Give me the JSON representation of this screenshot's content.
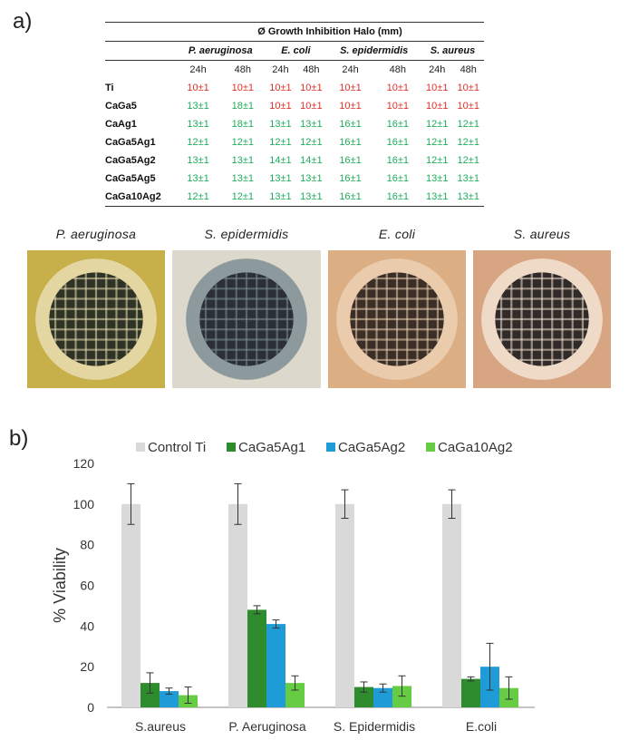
{
  "panel_a_label": "a)",
  "panel_b_label": "b)",
  "table": {
    "title": "Ø Growth Inhibition Halo (mm)",
    "organisms": [
      "P. aeruginosa",
      "E. coli",
      "S. epidermidis",
      "S. aureus"
    ],
    "times": [
      "24h",
      "48h",
      "24h",
      "48h",
      "24h",
      "48h",
      "24h",
      "48h"
    ],
    "rows": [
      {
        "sample": "Ti",
        "values": [
          "10±1",
          "10±1",
          "10±1",
          "10±1",
          "10±1",
          "10±1",
          "10±1",
          "10±1"
        ],
        "colors": [
          "red",
          "red",
          "red",
          "red",
          "red",
          "red",
          "red",
          "red"
        ]
      },
      {
        "sample": "CaGa5",
        "values": [
          "13±1",
          "18±1",
          "10±1",
          "10±1",
          "10±1",
          "10±1",
          "10±1",
          "10±1"
        ],
        "colors": [
          "green",
          "green",
          "red",
          "red",
          "red",
          "red",
          "red",
          "red"
        ]
      },
      {
        "sample": "CaAg1",
        "values": [
          "13±1",
          "18±1",
          "13±1",
          "13±1",
          "16±1",
          "16±1",
          "12±1",
          "12±1"
        ],
        "colors": [
          "green",
          "green",
          "green",
          "green",
          "green",
          "green",
          "green",
          "green"
        ]
      },
      {
        "sample": "CaGa5Ag1",
        "values": [
          "12±1",
          "12±1",
          "12±1",
          "12±1",
          "16±1",
          "16±1",
          "12±1",
          "12±1"
        ],
        "colors": [
          "green",
          "green",
          "green",
          "green",
          "green",
          "green",
          "green",
          "green"
        ]
      },
      {
        "sample": "CaGa5Ag2",
        "values": [
          "13±1",
          "13±1",
          "14±1",
          "14±1",
          "16±1",
          "16±1",
          "12±1",
          "12±1"
        ],
        "colors": [
          "green",
          "green",
          "green",
          "green",
          "green",
          "green",
          "green",
          "green"
        ]
      },
      {
        "sample": "CaGa5Ag5",
        "values": [
          "13±1",
          "13±1",
          "13±1",
          "13±1",
          "16±1",
          "16±1",
          "13±1",
          "13±1"
        ],
        "colors": [
          "green",
          "green",
          "green",
          "green",
          "green",
          "green",
          "green",
          "green"
        ]
      },
      {
        "sample": "CaGa10Ag2",
        "values": [
          "12±1",
          "12±1",
          "13±1",
          "13±1",
          "16±1",
          "16±1",
          "13±1",
          "13±1"
        ],
        "colors": [
          "green",
          "green",
          "green",
          "green",
          "green",
          "green",
          "green",
          "green"
        ]
      }
    ]
  },
  "photos": [
    {
      "caption": "P. aeruginosa",
      "bg": "#c7b04a",
      "halo": "#e9ddb0",
      "disc": "#2e3326"
    },
    {
      "caption": "S. epidermidis",
      "bg": "#dcd8cc",
      "halo": "#7f8f94",
      "disc": "#2b3038"
    },
    {
      "caption": "E. coli",
      "bg": "#dcae84",
      "halo": "#ecd1b3",
      "disc": "#3a2e26"
    },
    {
      "caption": "S. aureus",
      "bg": "#d8a582",
      "halo": "#f2e3d2",
      "disc": "#302a28"
    }
  ],
  "chart_data": {
    "type": "bar",
    "categories": [
      "S.aureus",
      "P. Aeruginosa",
      "S. Epidermidis",
      "E.coli"
    ],
    "ylabel": "% Viability",
    "ylim": [
      0,
      120
    ],
    "yticks": [
      0,
      20,
      40,
      60,
      80,
      100,
      120
    ],
    "legend_position": "top",
    "series": [
      {
        "name": "Control Ti",
        "color": "#d9d9d9",
        "values": [
          100,
          100,
          100,
          100
        ],
        "errors": [
          10,
          10,
          7,
          7
        ]
      },
      {
        "name": "CaGa5Ag1",
        "color": "#2e8b2e",
        "values": [
          12,
          48,
          10,
          14
        ],
        "errors": [
          5,
          2,
          2.5,
          1
        ]
      },
      {
        "name": "CaGa5Ag2",
        "color": "#1f9bd7",
        "values": [
          8,
          41,
          9.5,
          20
        ],
        "errors": [
          1.5,
          2,
          2,
          11.5
        ]
      },
      {
        "name": "CaGa10Ag2",
        "color": "#66cc44",
        "values": [
          6,
          12,
          10.5,
          9.5
        ],
        "errors": [
          4,
          3.5,
          5,
          5.5
        ]
      }
    ]
  }
}
